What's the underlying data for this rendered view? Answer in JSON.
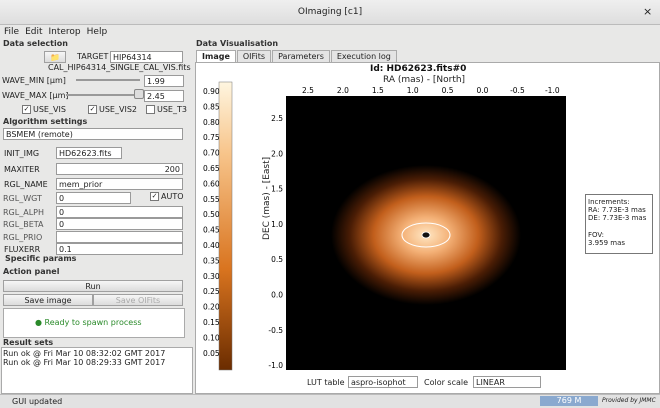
{
  "window": {
    "title": "OImaging [c1]",
    "close": "×"
  },
  "menu": [
    "File",
    "Edit",
    "Interop",
    "Help"
  ],
  "data_selection": {
    "title": "Data selection",
    "target_label": "TARGET",
    "target": "HIP64314",
    "file": "CAL_HIP64314_SINGLE_CAL_VIS.fits",
    "wave_min_label": "WAVE_MIN [µm]",
    "wave_min": "1.99",
    "wave_max_label": "WAVE_MAX [µm]",
    "wave_max": "2.45",
    "checks": [
      "USE_VIS",
      "USE_VIS2",
      "USE_T3"
    ]
  },
  "algorithm": {
    "title": "Algorithm settings",
    "algo": "BSMEM (remote)",
    "params": [
      {
        "label": "INIT_IMG",
        "value": "HD62623.fits"
      },
      {
        "label": "MAXITER",
        "value": "200"
      },
      {
        "label": "RGL_NAME",
        "value": "mem_prior"
      },
      {
        "label": "RGL_WGT",
        "value": "0"
      },
      {
        "label": "RGL_ALPH",
        "value": "0"
      },
      {
        "label": "RGL_BETA",
        "value": "0"
      },
      {
        "label": "RGL_PRIO"
      },
      {
        "label": "FLUXERR",
        "value": "0.1"
      }
    ],
    "auto": "AUTO",
    "specific": "Specific params"
  },
  "action": {
    "title": "Action panel",
    "run": "Run",
    "save_image": "Save image",
    "save_oifits": "Save OIFits",
    "status": "Ready to spawn process"
  },
  "results": {
    "title": "Result sets",
    "items": [
      "Run ok @ Fri Mar 10 08:32:02 GMT 2017",
      "Run ok @ Fri Mar 10 08:29:33 GMT 2017"
    ]
  },
  "visualisation": {
    "title": "Data Visualisation",
    "tabs": [
      "Image",
      "OIFits",
      "Parameters",
      "Execution log"
    ],
    "plot": {
      "title": "Id: HD62623.fits#0",
      "x_label": "RA (mas) - [North]",
      "y_label": "DEC (mas) - [East]",
      "xticks": [
        "2.5",
        "2.0",
        "1.5",
        "1.0",
        "0.5",
        "0.0",
        "-0.5",
        "-1.0"
      ],
      "yticks": [
        "2.5",
        "2.0",
        "1.5",
        "1.0",
        "0.5",
        "0.0",
        "-0.5",
        "-1.0"
      ],
      "colorbar_ticks": [
        "0.90",
        "0.85",
        "0.80",
        "0.75",
        "0.70",
        "0.65",
        "0.60",
        "0.55",
        "0.50",
        "0.45",
        "0.40",
        "0.35",
        "0.30",
        "0.25",
        "0.20",
        "0.15",
        "0.10",
        "0.05"
      ]
    },
    "info": [
      "Increments:",
      "RA: 7.73E-3 mas",
      "DE: 7.73E-3 mas",
      "FOV:",
      "3.959 mas"
    ],
    "lut_label": "LUT table",
    "lut": "aspro-isophot",
    "scale_label": "Color scale",
    "scale": "LINEAR"
  },
  "status": {
    "text": "GUI updated",
    "memory": "769 M",
    "provider": "Provided by JMMC"
  }
}
